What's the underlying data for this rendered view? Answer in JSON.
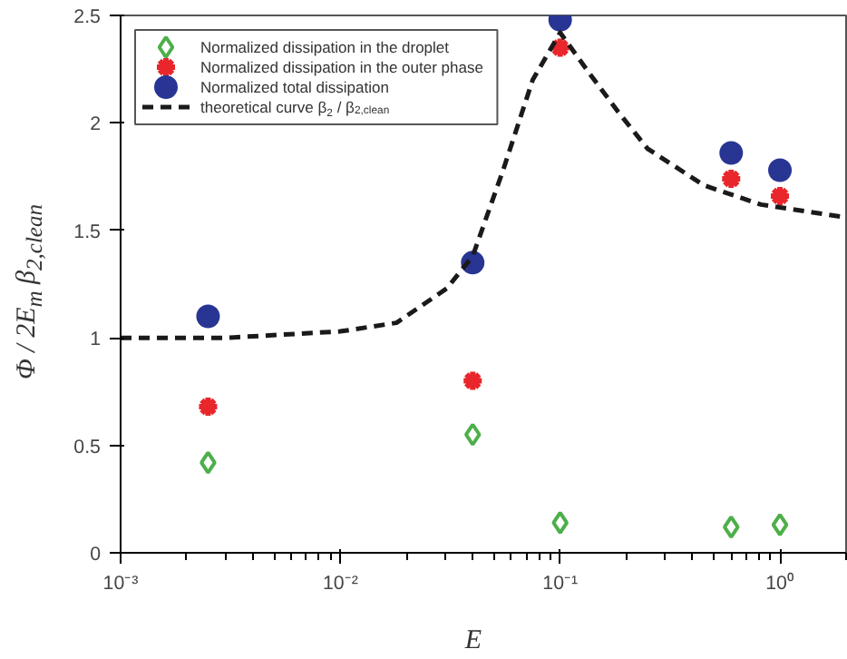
{
  "chart_data": {
    "type": "scatter",
    "xlabel": "E",
    "ylabel": "Φ / 2E$_{m}$ β$_{2,clean}$",
    "log": "x",
    "xlim": [
      0.001,
      2
    ],
    "ylim": [
      0,
      2.5
    ],
    "xticks": [
      {
        "value": 0.001,
        "label": "10⁻³"
      },
      {
        "value": 0.01,
        "label": "10⁻²"
      },
      {
        "value": 0.1,
        "label": "10⁻¹"
      },
      {
        "value": 1,
        "label": "10⁰"
      }
    ],
    "yticks": [
      0,
      0.5,
      1,
      1.5,
      2,
      2.5
    ],
    "grid": false,
    "legend": "top left",
    "x": [
      0.0025,
      0.04,
      0.1,
      0.6,
      1
    ],
    "series": [
      {
        "name": "Normalized dissipation in the droplet",
        "color": "#4daf4a",
        "marker": "diamond",
        "values": [
          0.42,
          0.55,
          0.14,
          0.12,
          0.13
        ]
      },
      {
        "name": "Normalized dissipation in the outer phase",
        "color": "#e8262b",
        "marker": "cross",
        "values": [
          0.68,
          0.8,
          2.35,
          1.74,
          1.66
        ]
      },
      {
        "name": "Normalized total dissipation",
        "color": "#283593",
        "marker": "circle",
        "values": [
          1.1,
          1.35,
          2.48,
          1.86,
          1.78
        ]
      },
      {
        "name": "theoretical curve   β$_{2}$ / β$_{2,clean}$",
        "type": "line",
        "line_style": "dashed",
        "color": "#1a1a1a",
        "marker": "none",
        "x": [
          0.001,
          0.003,
          0.01,
          0.018,
          0.0305,
          0.04,
          0.055,
          0.075,
          0.1,
          0.136,
          0.184,
          0.25,
          0.45,
          0.82,
          2
        ],
        "values": [
          1.0,
          1.0,
          1.03,
          1.07,
          1.23,
          1.38,
          1.78,
          2.2,
          2.42,
          2.23,
          2.05,
          1.88,
          1.71,
          1.62,
          1.56
        ]
      }
    ]
  }
}
